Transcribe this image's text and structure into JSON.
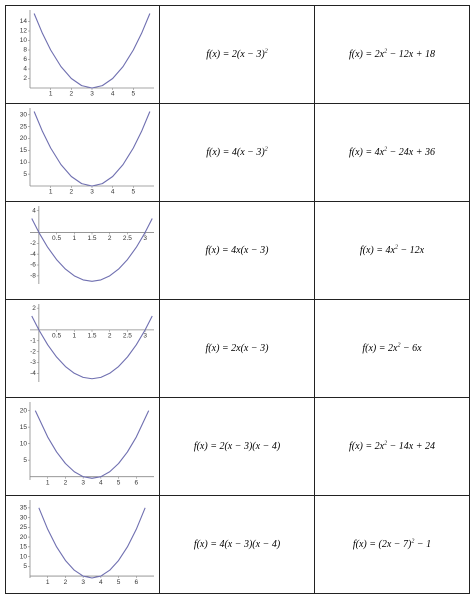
{
  "table": {
    "rows": [
      {
        "graph": {
          "xlim": [
            0,
            6
          ],
          "ylim": [
            0,
            16
          ],
          "xticks": [
            1,
            2,
            3,
            4,
            5
          ],
          "yticks": [
            2,
            4,
            6,
            8,
            10,
            12,
            14
          ],
          "x": [
            0.2,
            0.6,
            1,
            1.5,
            2,
            2.5,
            3,
            3.5,
            4,
            4.5,
            5,
            5.4,
            5.8
          ],
          "y": [
            15.68,
            11.52,
            8,
            4.5,
            2,
            0.5,
            0,
            0.5,
            2,
            4.5,
            8,
            11.52,
            15.68
          ]
        },
        "vertex_form": [
          {
            "t": "f(x) = 2(x − 3)"
          },
          {
            "sup": "2"
          }
        ],
        "standard_form": [
          {
            "t": "f(x) = 2x"
          },
          {
            "sup": "2"
          },
          {
            "t": " − 12x + 18"
          }
        ]
      },
      {
        "graph": {
          "xlim": [
            0,
            6
          ],
          "ylim": [
            0,
            32
          ],
          "xticks": [
            1,
            2,
            3,
            4,
            5
          ],
          "yticks": [
            5,
            10,
            15,
            20,
            25,
            30
          ],
          "x": [
            0.2,
            0.6,
            1,
            1.5,
            2,
            2.5,
            3,
            3.5,
            4,
            4.5,
            5,
            5.4,
            5.8
          ],
          "y": [
            31.36,
            23.04,
            16,
            9,
            4,
            1,
            0,
            1,
            4,
            9,
            16,
            23.04,
            31.36
          ]
        },
        "vertex_form": [
          {
            "t": "f(x) = 4(x − 3)"
          },
          {
            "sup": "2"
          }
        ],
        "standard_form": [
          {
            "t": "f(x) = 4x"
          },
          {
            "sup": "2"
          },
          {
            "t": " − 24x + 36"
          }
        ]
      },
      {
        "graph": {
          "xlim": [
            -0.25,
            3.25
          ],
          "ylim": [
            -9.5,
            4.5
          ],
          "xticks": [
            0.5,
            1.0,
            1.5,
            2.0,
            2.5,
            3.0
          ],
          "yticks": [
            4,
            -2,
            -4,
            -6,
            -8
          ],
          "x": [
            -0.2,
            0,
            0.25,
            0.5,
            0.75,
            1,
            1.25,
            1.5,
            1.75,
            2,
            2.25,
            2.5,
            2.75,
            3,
            3.2
          ],
          "y": [
            2.56,
            0,
            -2.75,
            -5,
            -6.75,
            -8,
            -8.75,
            -9,
            -8.75,
            -8,
            -6.75,
            -5,
            -2.75,
            0,
            2.56
          ]
        },
        "vertex_form": [
          {
            "t": "f(x) = 4x(x − 3)"
          }
        ],
        "standard_form": [
          {
            "t": "f(x) = 4x"
          },
          {
            "sup": "2"
          },
          {
            "t": " − 12x"
          }
        ]
      },
      {
        "graph": {
          "xlim": [
            -0.25,
            3.25
          ],
          "ylim": [
            -4.8,
            2.2
          ],
          "xticks": [
            0.5,
            1.0,
            1.5,
            2.0,
            2.5,
            3.0
          ],
          "yticks": [
            2,
            -1,
            -2,
            -3,
            -4
          ],
          "x": [
            -0.2,
            0,
            0.25,
            0.5,
            0.75,
            1,
            1.25,
            1.5,
            1.75,
            2,
            2.25,
            2.5,
            2.75,
            3,
            3.2
          ],
          "y": [
            1.28,
            0,
            -1.375,
            -2.5,
            -3.375,
            -4,
            -4.375,
            -4.5,
            -4.375,
            -4,
            -3.375,
            -2.5,
            -1.375,
            0,
            1.28
          ]
        },
        "vertex_form": [
          {
            "t": "f(x) = 2x(x − 3)"
          }
        ],
        "standard_form": [
          {
            "t": "f(x) = 2x"
          },
          {
            "sup": "2"
          },
          {
            "t": " − 6x"
          }
        ]
      },
      {
        "graph": {
          "xlim": [
            0,
            7
          ],
          "ylim": [
            -1,
            22
          ],
          "xticks": [
            1,
            2,
            3,
            4,
            5,
            6
          ],
          "yticks": [
            5,
            10,
            15,
            20
          ],
          "x": [
            0.3,
            1,
            1.5,
            2,
            2.5,
            3,
            3.5,
            4,
            4.5,
            5,
            5.5,
            6,
            6.7
          ],
          "y": [
            19.98,
            12,
            7.5,
            4,
            1.5,
            0,
            -0.5,
            0,
            1.5,
            4,
            7.5,
            12,
            19.98
          ]
        },
        "vertex_form": [
          {
            "t": "f(x) = 2(x − 3)(x − 4)"
          }
        ],
        "standard_form": [
          {
            "t": "f(x) = 2x"
          },
          {
            "sup": "2"
          },
          {
            "t": " − 14x + 24"
          }
        ]
      },
      {
        "graph": {
          "xlim": [
            0,
            7
          ],
          "ylim": [
            -1,
            38
          ],
          "xticks": [
            1,
            2,
            3,
            4,
            5,
            6
          ],
          "yticks": [
            5,
            10,
            15,
            20,
            25,
            30,
            35
          ],
          "x": [
            0.5,
            1,
            1.5,
            2,
            2.5,
            3,
            3.5,
            4,
            4.5,
            5,
            5.5,
            6,
            6.5
          ],
          "y": [
            35,
            24,
            15,
            8,
            3,
            0,
            -1,
            0,
            3,
            8,
            15,
            24,
            35
          ]
        },
        "vertex_form": [
          {
            "t": "f(x) = 4(x − 3)(x − 4)"
          }
        ],
        "standard_form": [
          {
            "t": "f(x) = (2x − 7)"
          },
          {
            "sup": "2"
          },
          {
            "t": " − 1"
          }
        ]
      }
    ]
  }
}
